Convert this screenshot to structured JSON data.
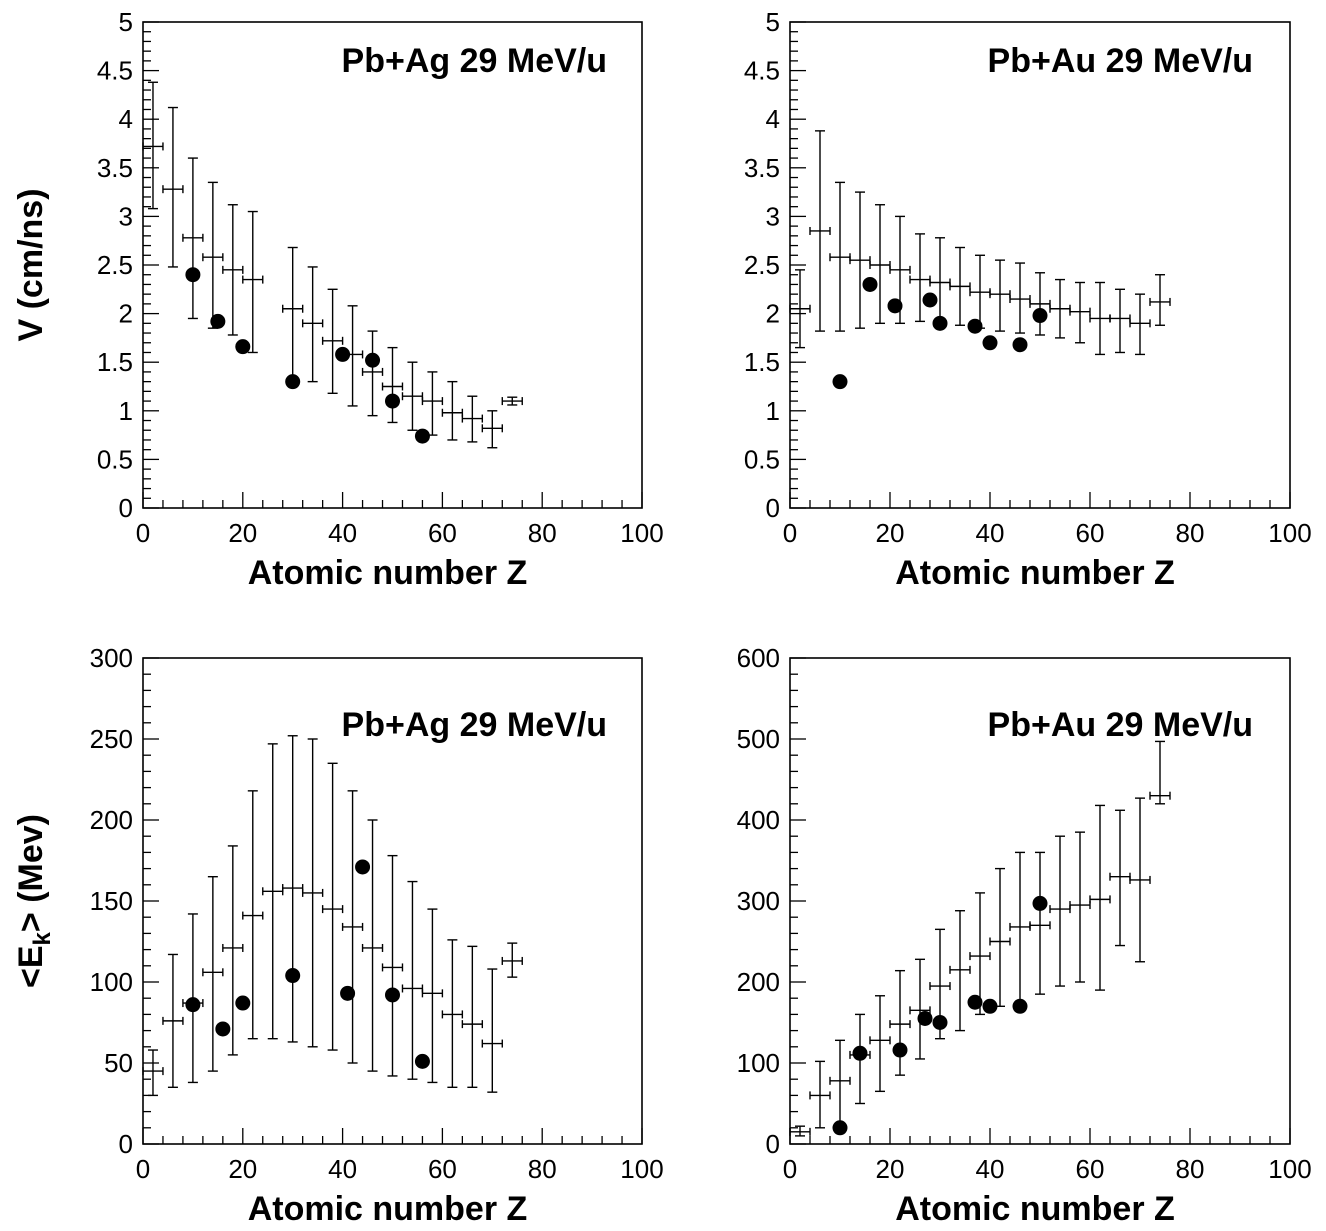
{
  "chart_data": [
    {
      "type": "scatter",
      "title": "Pb+Ag  29 MeV/u",
      "xlabel": "Atomic number Z",
      "ylabel": "V (cm/ns)",
      "xlim": [
        0,
        100
      ],
      "ylim": [
        0,
        5
      ],
      "xticks": [
        0,
        20,
        40,
        60,
        80,
        100
      ],
      "yticks": [
        0,
        0.5,
        1,
        1.5,
        2,
        2.5,
        3,
        3.5,
        4,
        4.5,
        5
      ],
      "xtick_labels": [
        "0",
        "20",
        "40",
        "60",
        "80",
        "100"
      ],
      "ytick_labels": [
        "0",
        "0.5",
        "1",
        "1.5",
        "2",
        "2.5",
        "3",
        "3.5",
        "4",
        "4.5",
        "5"
      ],
      "series": [
        {
          "style": "crosses with error bars",
          "x": [
            2,
            6,
            10,
            14,
            18,
            22,
            30,
            34,
            38,
            42,
            46,
            50,
            54,
            58,
            62,
            66,
            70,
            74
          ],
          "y": [
            3.72,
            3.28,
            2.78,
            2.58,
            2.45,
            2.35,
            2.05,
            1.9,
            1.72,
            1.58,
            1.4,
            1.25,
            1.15,
            1.1,
            0.98,
            0.92,
            0.82,
            1.1
          ],
          "yerr_low": [
            3.08,
            2.48,
            1.95,
            1.85,
            1.78,
            1.6,
            1.35,
            1.3,
            1.18,
            1.05,
            0.95,
            0.88,
            0.8,
            0.75,
            0.7,
            0.68,
            0.62,
            1.06
          ],
          "yerr_high": [
            4.38,
            4.12,
            3.6,
            3.35,
            3.12,
            3.05,
            2.68,
            2.48,
            2.25,
            2.08,
            1.82,
            1.65,
            1.5,
            1.4,
            1.3,
            1.15,
            1.0,
            1.14
          ]
        },
        {
          "style": "filled circles",
          "x": [
            10,
            15,
            20,
            30,
            40,
            46,
            50,
            56
          ],
          "y": [
            2.4,
            1.92,
            1.66,
            1.3,
            1.58,
            1.52,
            1.1,
            0.74
          ]
        }
      ]
    },
    {
      "type": "scatter",
      "title": "Pb+Au  29 MeV/u",
      "xlabel": "Atomic number Z",
      "ylabel": "",
      "xlim": [
        0,
        100
      ],
      "ylim": [
        0,
        5
      ],
      "xticks": [
        0,
        20,
        40,
        60,
        80,
        100
      ],
      "yticks": [
        0,
        0.5,
        1,
        1.5,
        2,
        2.5,
        3,
        3.5,
        4,
        4.5,
        5
      ],
      "xtick_labels": [
        "0",
        "20",
        "40",
        "60",
        "80",
        "100"
      ],
      "ytick_labels": [
        "0",
        "0.5",
        "1",
        "1.5",
        "2",
        "2.5",
        "3",
        "3.5",
        "4",
        "4.5",
        "5"
      ],
      "series": [
        {
          "style": "crosses with error bars",
          "x": [
            2,
            6,
            10,
            14,
            18,
            22,
            26,
            30,
            34,
            38,
            42,
            46,
            50,
            54,
            58,
            62,
            66,
            70,
            74
          ],
          "y": [
            2.05,
            2.85,
            2.58,
            2.55,
            2.5,
            2.45,
            2.35,
            2.32,
            2.28,
            2.22,
            2.2,
            2.15,
            2.1,
            2.05,
            2.02,
            1.95,
            1.95,
            1.9,
            2.12
          ],
          "yerr_low": [
            1.65,
            1.82,
            1.82,
            1.85,
            1.9,
            1.9,
            1.92,
            1.92,
            1.88,
            1.85,
            1.82,
            1.8,
            1.78,
            1.75,
            1.7,
            1.58,
            1.6,
            1.58,
            1.88
          ],
          "yerr_high": [
            2.45,
            3.88,
            3.35,
            3.25,
            3.12,
            3.0,
            2.82,
            2.78,
            2.68,
            2.6,
            2.55,
            2.52,
            2.42,
            2.35,
            2.32,
            2.32,
            2.25,
            2.2,
            2.4
          ]
        },
        {
          "style": "filled circles",
          "x": [
            10,
            16,
            21,
            28,
            30,
            37,
            40,
            46,
            50
          ],
          "y": [
            1.3,
            2.3,
            2.08,
            2.14,
            1.9,
            1.87,
            1.7,
            1.68,
            1.98
          ]
        }
      ]
    },
    {
      "type": "scatter",
      "title": "Pb+Ag  29 MeV/u",
      "xlabel": "Atomic number Z",
      "ylabel": "<E_k> (Mev)",
      "xlim": [
        0,
        100
      ],
      "ylim": [
        0,
        300
      ],
      "xticks": [
        0,
        20,
        40,
        60,
        80,
        100
      ],
      "yticks": [
        0,
        50,
        100,
        150,
        200,
        250,
        300
      ],
      "xtick_labels": [
        "0",
        "20",
        "40",
        "60",
        "80",
        "100"
      ],
      "ytick_labels": [
        "0",
        "50",
        "100",
        "150",
        "200",
        "250",
        "300"
      ],
      "series": [
        {
          "style": "crosses with error bars",
          "x": [
            2,
            6,
            10,
            14,
            18,
            22,
            26,
            30,
            34,
            38,
            42,
            46,
            50,
            54,
            58,
            62,
            66,
            70,
            74
          ],
          "y": [
            45,
            76,
            87,
            106,
            121,
            141,
            156,
            158,
            155,
            145,
            134,
            121,
            109,
            96,
            93,
            80,
            74,
            62,
            113
          ],
          "yerr_low": [
            30,
            35,
            38,
            45,
            55,
            65,
            65,
            63,
            60,
            58,
            50,
            45,
            42,
            40,
            38,
            35,
            35,
            32,
            103
          ],
          "yerr_high": [
            58,
            117,
            142,
            165,
            184,
            218,
            247,
            252,
            250,
            235,
            218,
            200,
            178,
            162,
            145,
            126,
            122,
            108,
            124
          ]
        },
        {
          "style": "filled circles",
          "x": [
            10,
            16,
            20,
            30,
            41,
            44,
            50,
            56
          ],
          "y": [
            86,
            71,
            87,
            104,
            93,
            171,
            92,
            51
          ]
        }
      ]
    },
    {
      "type": "scatter",
      "title": "Pb+Au  29 MeV/u",
      "xlabel": "Atomic number Z",
      "ylabel": "",
      "xlim": [
        0,
        100
      ],
      "ylim": [
        0,
        600
      ],
      "xticks": [
        0,
        20,
        40,
        60,
        80,
        100
      ],
      "yticks": [
        0,
        100,
        200,
        300,
        400,
        500,
        600
      ],
      "xtick_labels": [
        "0",
        "20",
        "40",
        "60",
        "80",
        "100"
      ],
      "ytick_labels": [
        "0",
        "100",
        "200",
        "300",
        "400",
        "500",
        "600"
      ],
      "series": [
        {
          "style": "crosses with error bars",
          "x": [
            2,
            6,
            10,
            14,
            18,
            22,
            26,
            30,
            34,
            38,
            42,
            46,
            50,
            54,
            58,
            62,
            66,
            70,
            74
          ],
          "y": [
            15,
            60,
            78,
            110,
            128,
            148,
            165,
            195,
            215,
            232,
            250,
            268,
            270,
            290,
            295,
            302,
            330,
            326,
            430
          ],
          "yerr_low": [
            10,
            20,
            25,
            50,
            65,
            85,
            105,
            130,
            140,
            160,
            170,
            175,
            185,
            195,
            200,
            190,
            245,
            225,
            420
          ],
          "yerr_high": [
            22,
            102,
            128,
            160,
            183,
            214,
            228,
            265,
            288,
            310,
            340,
            360,
            360,
            380,
            385,
            418,
            412,
            427,
            497
          ]
        },
        {
          "style": "filled circles",
          "x": [
            10,
            14,
            22,
            27,
            30,
            37,
            40,
            46,
            50
          ],
          "y": [
            20,
            112,
            116,
            155,
            150,
            175,
            170,
            170,
            297
          ]
        }
      ]
    }
  ]
}
